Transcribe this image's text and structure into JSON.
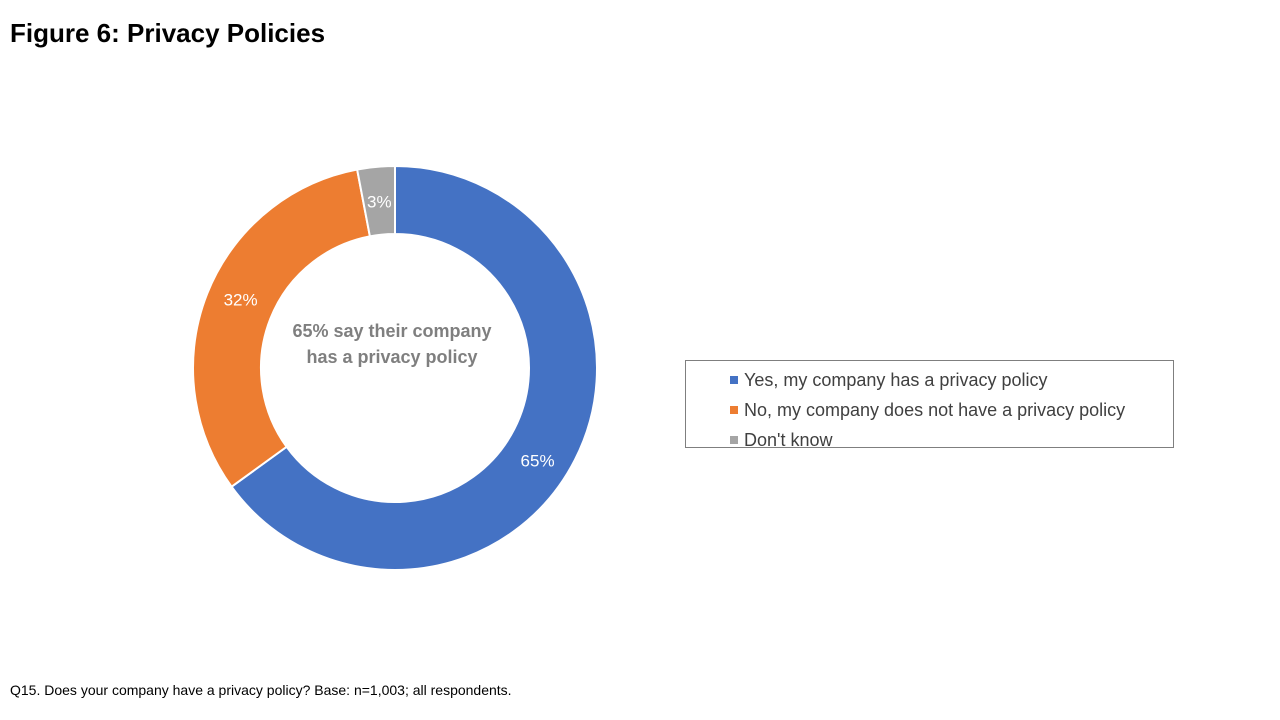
{
  "title": "Figure 6: Privacy Policies",
  "center_text": "65% say their company has a privacy policy",
  "footnote": "Q15. Does your company have a privacy policy? Base: n=1,003; all respondents.",
  "chart_data": {
    "type": "pie",
    "donut": true,
    "start_angle_deg": 0,
    "direction": "clockwise",
    "legend_position": "right",
    "series": [
      {
        "labels": [
          "Yes, my company has a privacy policy",
          "No, my company does not have a privacy policy",
          "Don't know"
        ],
        "values": [
          65,
          32,
          3
        ],
        "data_labels": [
          "65%",
          "32%",
          "3%"
        ],
        "colors": [
          "#4472c4",
          "#ed7d31",
          "#a5a5a5"
        ]
      }
    ]
  },
  "legend": {
    "items": [
      {
        "label": "Yes, my company has a privacy policy",
        "color": "#4472c4"
      },
      {
        "label": "No, my company does not have a privacy policy",
        "color": "#ed7d31"
      },
      {
        "label": "Don't know",
        "color": "#a5a5a5"
      }
    ]
  }
}
